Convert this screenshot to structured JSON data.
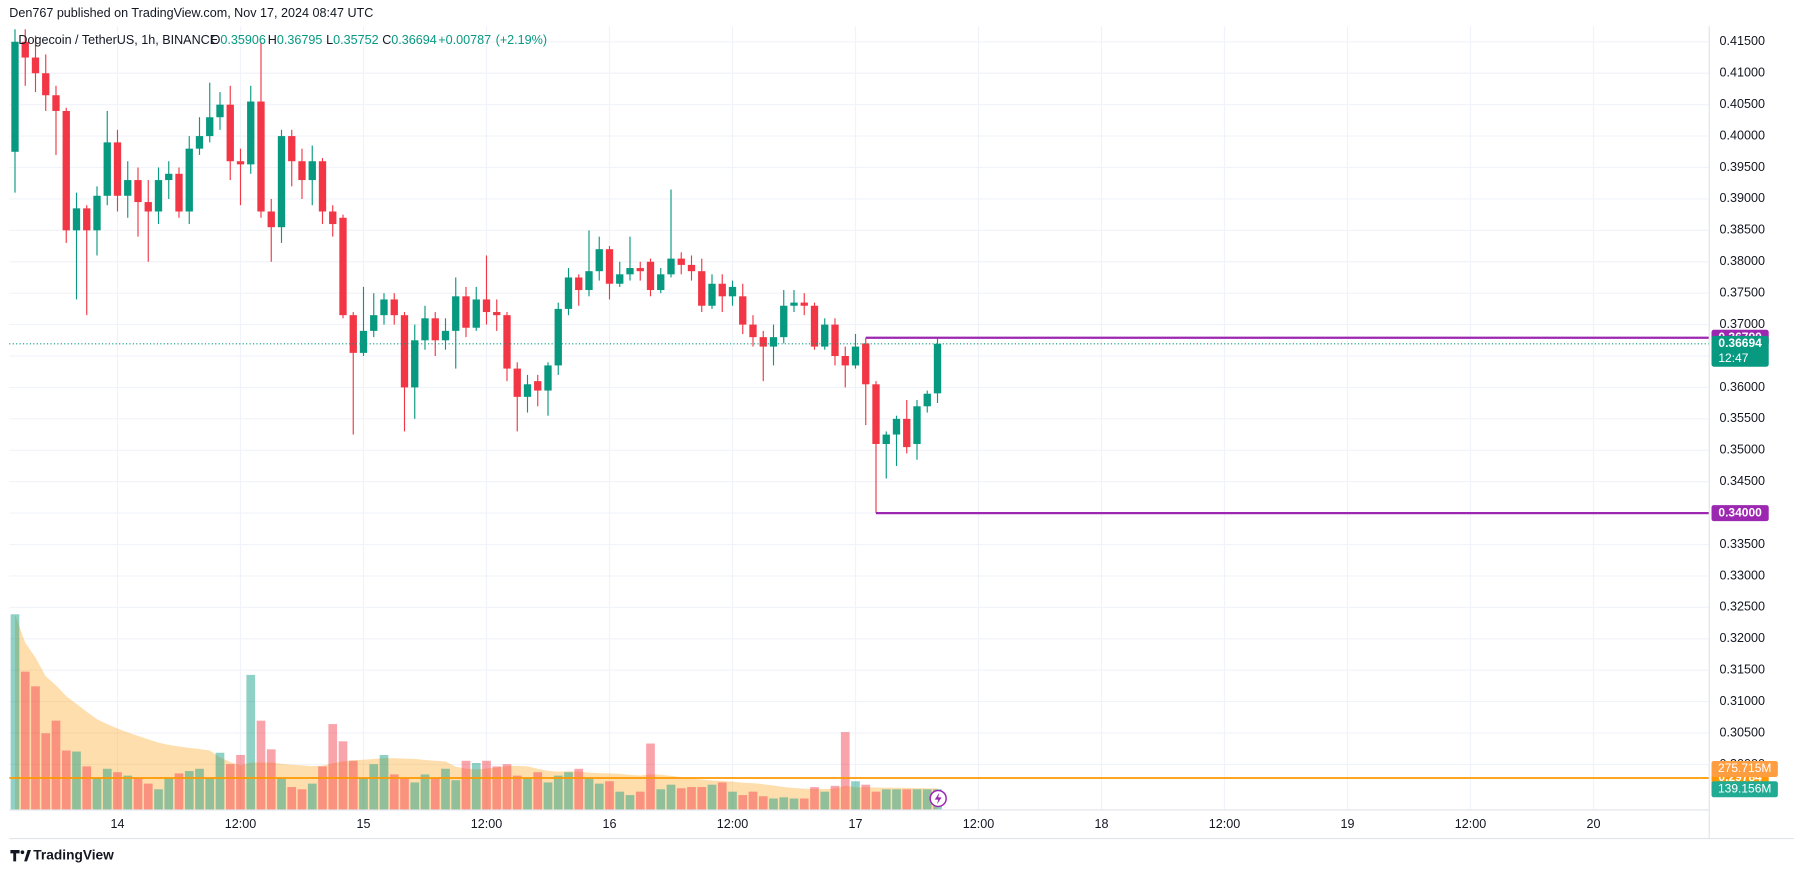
{
  "header": {
    "published": "Den767 published on TradingView.com, Nov 17, 2024 08:47 UTC"
  },
  "legend": {
    "symbol": "Dogecoin / TetherUS, 1h, BINANCE",
    "o_label": "O",
    "open": 0.35906,
    "h_label": "H",
    "high": 0.36795,
    "l_label": "L",
    "low": 0.35752,
    "c_label": "C",
    "close": 0.36694,
    "change": {
      "value": 0.00787,
      "label": "+0.00787"
    },
    "change_pct": {
      "value": 2.19,
      "label": "(+2.19%)"
    }
  },
  "footer": {
    "brand": "TradingView"
  },
  "chart_data": {
    "type": "candlestick",
    "up_color": "#089981",
    "down_color": "#f23645",
    "open": [
      0.3975,
      0.415,
      0.4125,
      0.41,
      0.4065,
      0.404,
      0.385,
      0.3885,
      0.385,
      0.3905,
      0.399,
      0.3905,
      0.393,
      0.3895,
      0.388,
      0.393,
      0.394,
      0.388,
      0.398,
      0.4,
      0.403,
      0.405,
      0.396,
      0.3955,
      0.4055,
      0.388,
      0.3855,
      0.4,
      0.396,
      0.393,
      0.396,
      0.388,
      0.387,
      0.3715,
      0.3655,
      0.369,
      0.3715,
      0.374,
      0.3715,
      0.36,
      0.3675,
      0.371,
      0.3675,
      0.369,
      0.3745,
      0.3695,
      0.374,
      0.372,
      0.3715,
      0.363,
      0.3585,
      0.361,
      0.3595,
      0.3635,
      0.3725,
      0.3775,
      0.3755,
      0.3785,
      0.382,
      0.3765,
      0.378,
      0.379,
      0.38,
      0.3755,
      0.378,
      0.3805,
      0.3795,
      0.3785,
      0.373,
      0.3765,
      0.3745,
      0.3745,
      0.37,
      0.368,
      0.3665,
      0.368,
      0.373,
      0.3735,
      0.373,
      0.3665,
      0.37,
      0.365,
      0.3635,
      0.367,
      0.3605,
      0.351,
      0.3525,
      0.355,
      0.351,
      0.357,
      0.35906
    ],
    "high": [
      0.417,
      0.417,
      0.416,
      0.413,
      0.408,
      0.4045,
      0.391,
      0.389,
      0.392,
      0.404,
      0.401,
      0.396,
      0.395,
      0.393,
      0.395,
      0.396,
      0.395,
      0.4,
      0.403,
      0.4085,
      0.407,
      0.408,
      0.398,
      0.408,
      0.415,
      0.39,
      0.401,
      0.401,
      0.398,
      0.3985,
      0.3965,
      0.389,
      0.3875,
      0.372,
      0.376,
      0.375,
      0.375,
      0.375,
      0.372,
      0.37,
      0.373,
      0.372,
      0.371,
      0.3775,
      0.376,
      0.376,
      0.381,
      0.374,
      0.372,
      0.364,
      0.362,
      0.362,
      0.364,
      0.3735,
      0.379,
      0.378,
      0.385,
      0.384,
      0.3825,
      0.38,
      0.384,
      0.38,
      0.3805,
      0.379,
      0.3915,
      0.3815,
      0.381,
      0.3805,
      0.378,
      0.378,
      0.377,
      0.3765,
      0.3715,
      0.369,
      0.37,
      0.3755,
      0.3755,
      0.375,
      0.3735,
      0.371,
      0.371,
      0.3665,
      0.3685,
      0.3679,
      0.361,
      0.353,
      0.3555,
      0.358,
      0.358,
      0.3595,
      0.36795
    ],
    "low": [
      0.391,
      0.408,
      0.407,
      0.404,
      0.397,
      0.383,
      0.374,
      0.3715,
      0.381,
      0.389,
      0.388,
      0.387,
      0.384,
      0.38,
      0.386,
      0.39,
      0.387,
      0.386,
      0.397,
      0.399,
      0.401,
      0.393,
      0.389,
      0.394,
      0.387,
      0.38,
      0.383,
      0.392,
      0.39,
      0.389,
      0.386,
      0.384,
      0.371,
      0.3525,
      0.365,
      0.368,
      0.37,
      0.37,
      0.353,
      0.355,
      0.366,
      0.365,
      0.366,
      0.363,
      0.368,
      0.369,
      0.37,
      0.369,
      0.361,
      0.353,
      0.356,
      0.357,
      0.3555,
      0.362,
      0.3715,
      0.373,
      0.3745,
      0.377,
      0.374,
      0.376,
      0.377,
      0.377,
      0.3745,
      0.375,
      0.3775,
      0.378,
      0.377,
      0.372,
      0.3725,
      0.372,
      0.373,
      0.3685,
      0.3665,
      0.361,
      0.3635,
      0.367,
      0.372,
      0.3715,
      0.366,
      0.366,
      0.3635,
      0.36,
      0.363,
      0.354,
      0.34,
      0.3455,
      0.3475,
      0.3495,
      0.3485,
      0.356,
      0.35752
    ],
    "close": [
      0.415,
      0.4125,
      0.41,
      0.4065,
      0.404,
      0.385,
      0.3885,
      0.385,
      0.3905,
      0.399,
      0.3905,
      0.393,
      0.3895,
      0.388,
      0.393,
      0.394,
      0.388,
      0.398,
      0.4,
      0.403,
      0.405,
      0.396,
      0.3955,
      0.4055,
      0.388,
      0.3855,
      0.4,
      0.396,
      0.393,
      0.396,
      0.388,
      0.386,
      0.3715,
      0.3655,
      0.369,
      0.3715,
      0.374,
      0.3715,
      0.36,
      0.3675,
      0.371,
      0.3675,
      0.369,
      0.3745,
      0.3695,
      0.374,
      0.372,
      0.3715,
      0.363,
      0.3585,
      0.3605,
      0.3595,
      0.3635,
      0.3725,
      0.3775,
      0.3755,
      0.3785,
      0.382,
      0.3765,
      0.378,
      0.379,
      0.3785,
      0.3755,
      0.378,
      0.3805,
      0.3795,
      0.3785,
      0.373,
      0.3765,
      0.3745,
      0.376,
      0.37,
      0.368,
      0.3665,
      0.368,
      0.373,
      0.3735,
      0.373,
      0.3665,
      0.37,
      0.365,
      0.3635,
      0.3665,
      0.3605,
      0.351,
      0.3525,
      0.355,
      0.3505,
      0.357,
      0.359,
      0.36694
    ],
    "volume": [
      1317,
      931,
      832,
      516,
      601,
      400,
      393,
      293,
      216,
      277,
      254,
      231,
      216,
      177,
      139,
      216,
      246,
      262,
      277,
      216,
      385,
      308,
      370,
      909,
      601,
      408,
      216,
      154,
      139,
      177,
      293,
      578,
      462,
      331,
      216,
      308,
      370,
      239,
      216,
      185,
      239,
      216,
      277,
      200,
      331,
      316,
      331,
      293,
      308,
      231,
      216,
      254,
      185,
      231,
      254,
      277,
      216,
      177,
      193,
      123,
      100,
      123,
      447,
      139,
      170,
      146,
      154,
      154,
      170,
      185,
      123,
      100,
      123,
      92,
      77,
      85,
      77,
      77,
      154,
      123,
      162,
      524,
      193,
      170,
      123,
      139,
      139,
      139,
      139,
      139,
      139.156
    ],
    "volume_ylim": [
      0,
      5275
    ],
    "ylim": [
      0.29276,
      0.41747
    ],
    "yticks": [
      {
        "value": 0.415,
        "label": "0.41500"
      },
      {
        "value": 0.41,
        "label": "0.41000"
      },
      {
        "value": 0.405,
        "label": "0.40500"
      },
      {
        "value": 0.4,
        "label": "0.40000"
      },
      {
        "value": 0.395,
        "label": "0.39500"
      },
      {
        "value": 0.39,
        "label": "0.39000"
      },
      {
        "value": 0.385,
        "label": "0.38500"
      },
      {
        "value": 0.38,
        "label": "0.38000"
      },
      {
        "value": 0.375,
        "label": "0.37500"
      },
      {
        "value": 0.37,
        "label": "0.37000"
      },
      {
        "value": 0.365,
        "label": "0.36500"
      },
      {
        "value": 0.36,
        "label": "0.36000"
      },
      {
        "value": 0.355,
        "label": "0.35500"
      },
      {
        "value": 0.35,
        "label": "0.35000"
      },
      {
        "value": 0.345,
        "label": "0.34500"
      },
      {
        "value": 0.34,
        "label": "0.34000"
      },
      {
        "value": 0.335,
        "label": "0.33500"
      },
      {
        "value": 0.33,
        "label": "0.33000"
      },
      {
        "value": 0.325,
        "label": "0.32500"
      },
      {
        "value": 0.32,
        "label": "0.32000"
      },
      {
        "value": 0.315,
        "label": "0.31500"
      },
      {
        "value": 0.31,
        "label": "0.31000"
      },
      {
        "value": 0.305,
        "label": "0.30500"
      },
      {
        "value": 0.3,
        "label": "0.30000"
      }
    ],
    "xticks": [
      {
        "value": 10,
        "label": "14"
      },
      {
        "value": 22,
        "label": "12:00"
      },
      {
        "value": 34,
        "label": "15"
      },
      {
        "value": 46,
        "label": "12:00"
      },
      {
        "value": 58,
        "label": "16"
      },
      {
        "value": 70,
        "label": "12:00"
      },
      {
        "value": 82,
        "label": "17"
      },
      {
        "value": 94,
        "label": "12:00"
      },
      {
        "value": 106,
        "label": "18"
      },
      {
        "value": 118,
        "label": "12:00"
      },
      {
        "value": 130,
        "label": "19"
      },
      {
        "value": 142,
        "label": "12:00"
      },
      {
        "value": 154,
        "label": "20"
      }
    ],
    "levels": [
      {
        "value": 0.3679,
        "label": "0.36790",
        "color": "#9c27b0"
      },
      {
        "value": 0.34,
        "label": "0.34000",
        "color": "#9c27b0"
      }
    ],
    "last_price": 0.36694,
    "countdown": "12:47",
    "orange_level": 0.29784,
    "orange_color": "#ff9800",
    "volume_ma": {
      "value": 275.715,
      "label": "275.715M"
    },
    "last_volume": {
      "value": 139.156,
      "label": "139.156M"
    },
    "grid": true
  }
}
